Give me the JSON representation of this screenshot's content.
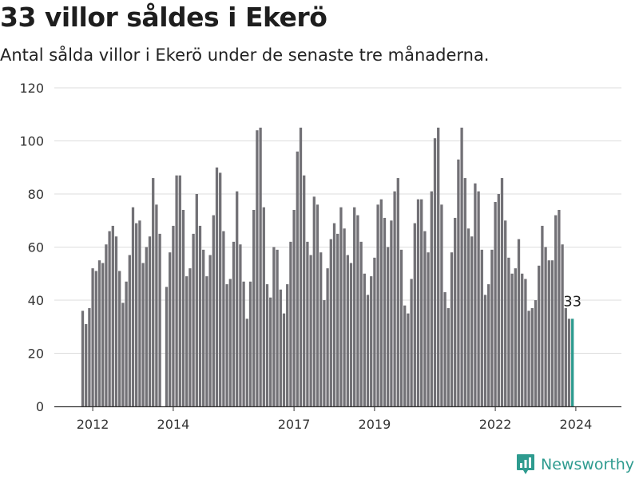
{
  "title": "33 villor såldes i Ekerö",
  "subtitle": "Antal sålda villor i Ekerö under de senaste tre månaderna.",
  "brand": {
    "name": "Newsworthy",
    "icon": "newsworthy-logo-icon",
    "color": "#2e9b8f"
  },
  "colors": {
    "bar": "#727176",
    "highlight": "#2e9b8f",
    "grid": "#dddddd",
    "axis": "#333333"
  },
  "chart_data": {
    "type": "bar",
    "x_start": "2011-10",
    "x_end": "2024-03",
    "x_ticks": [
      "2012",
      "2014",
      "2017",
      "2019",
      "2022",
      "2024"
    ],
    "ylim": [
      0,
      120
    ],
    "y_ticks": [
      0,
      20,
      40,
      60,
      80,
      100,
      120
    ],
    "xlabel": "",
    "ylabel": "",
    "grid": true,
    "highlight_last": true,
    "last_value_label": "33",
    "values": [
      36,
      31,
      37,
      52,
      51,
      55,
      54,
      61,
      66,
      68,
      64,
      51,
      39,
      47,
      57,
      75,
      69,
      70,
      54,
      60,
      64,
      86,
      76,
      65,
      0,
      45,
      58,
      68,
      87,
      87,
      74,
      49,
      52,
      65,
      80,
      68,
      59,
      49,
      57,
      72,
      90,
      88,
      66,
      46,
      48,
      62,
      81,
      61,
      47,
      33,
      47,
      74,
      104,
      105,
      75,
      46,
      41,
      60,
      59,
      44,
      35,
      46,
      62,
      74,
      96,
      105,
      87,
      62,
      57,
      79,
      76,
      58,
      40,
      52,
      63,
      69,
      65,
      75,
      67,
      57,
      54,
      75,
      72,
      62,
      50,
      42,
      49,
      56,
      76,
      78,
      71,
      60,
      70,
      81,
      86,
      59,
      38,
      35,
      48,
      69,
      78,
      78,
      66,
      58,
      81,
      101,
      105,
      76,
      43,
      37,
      58,
      71,
      93,
      105,
      86,
      67,
      64,
      84,
      81,
      59,
      42,
      46,
      59,
      77,
      80,
      86,
      70,
      56,
      50,
      52,
      63,
      50,
      48,
      36,
      37,
      40,
      53,
      68,
      60,
      55,
      55,
      72,
      74,
      61,
      37,
      33,
      33
    ]
  }
}
